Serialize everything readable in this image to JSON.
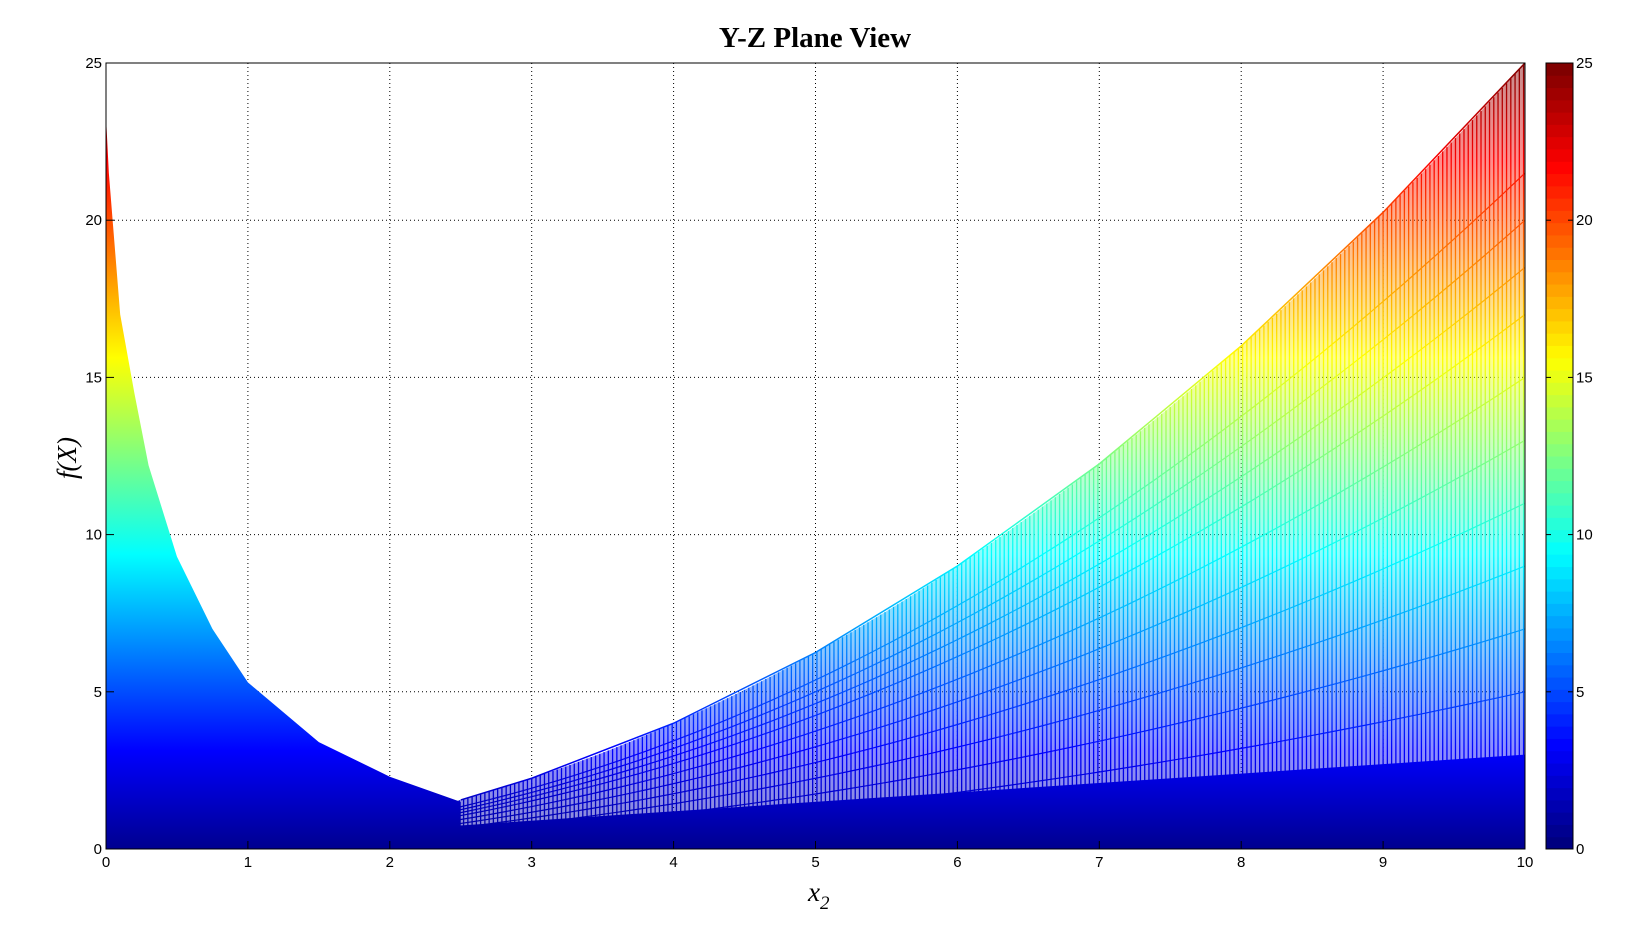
{
  "chart_data": {
    "type": "area",
    "title": "Y-Z Plane View",
    "xlabel": "x",
    "xlabel_subscript": "2",
    "ylabel": "f(X)",
    "xlim": [
      0,
      10
    ],
    "ylim": [
      0,
      25
    ],
    "grid": true,
    "colormap": "jet",
    "xticks": [
      "0",
      "1",
      "2",
      "3",
      "4",
      "5",
      "6",
      "7",
      "8",
      "9",
      "10"
    ],
    "yticks": [
      "0",
      "5",
      "10",
      "15",
      "20",
      "25"
    ],
    "colorbar": {
      "range": [
        0,
        25
      ],
      "ticks": [
        "0",
        "5",
        "10",
        "15",
        "20",
        "25"
      ],
      "placement": "right"
    },
    "colormap_stops": [
      "#00008f",
      "#0000ff",
      "#00ffff",
      "#ffff00",
      "#ff0000",
      "#800000"
    ],
    "series": [
      {
        "x": [
          0,
          0.02,
          0.1,
          0.2,
          0.3,
          0.5,
          0.75,
          1,
          1.5,
          2,
          2.5
        ],
        "y": [
          23.3,
          21.5,
          17,
          14.5,
          12.2,
          9.3,
          7,
          5.3,
          3.4,
          2.3,
          1.5
        ]
      },
      {
        "x": [
          2.5,
          3,
          4,
          5,
          6,
          7,
          8,
          9,
          10
        ],
        "y": [
          1.56,
          2.25,
          4,
          6.25,
          9,
          12.25,
          16,
          20.25,
          25
        ]
      }
    ]
  }
}
